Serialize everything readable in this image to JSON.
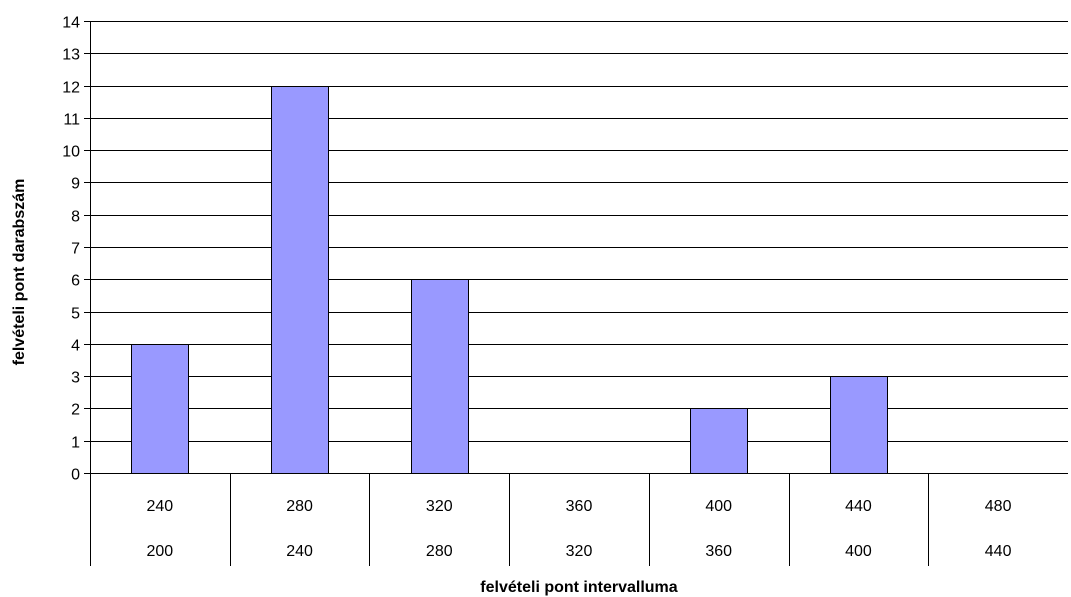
{
  "chart_data": {
    "type": "bar",
    "title": "",
    "xlabel": "felvételi pont intervalluma",
    "ylabel": "felvételi pont darabszám",
    "ylim": [
      0,
      14
    ],
    "y_ticks": [
      0,
      1,
      2,
      3,
      4,
      5,
      6,
      7,
      8,
      9,
      10,
      11,
      12,
      13,
      14
    ],
    "categories": [
      {
        "upper": "240",
        "lower": "200"
      },
      {
        "upper": "280",
        "lower": "240"
      },
      {
        "upper": "320",
        "lower": "280"
      },
      {
        "upper": "360",
        "lower": "320"
      },
      {
        "upper": "400",
        "lower": "360"
      },
      {
        "upper": "440",
        "lower": "400"
      },
      {
        "upper": "480",
        "lower": "440"
      }
    ],
    "values": [
      4,
      12,
      6,
      0,
      2,
      3,
      0
    ],
    "grid": true,
    "legend": "none",
    "colors": {
      "bar_fill": "#9999ff",
      "bar_stroke": "#000000",
      "grid": "#000000",
      "axis": "#000000"
    }
  }
}
